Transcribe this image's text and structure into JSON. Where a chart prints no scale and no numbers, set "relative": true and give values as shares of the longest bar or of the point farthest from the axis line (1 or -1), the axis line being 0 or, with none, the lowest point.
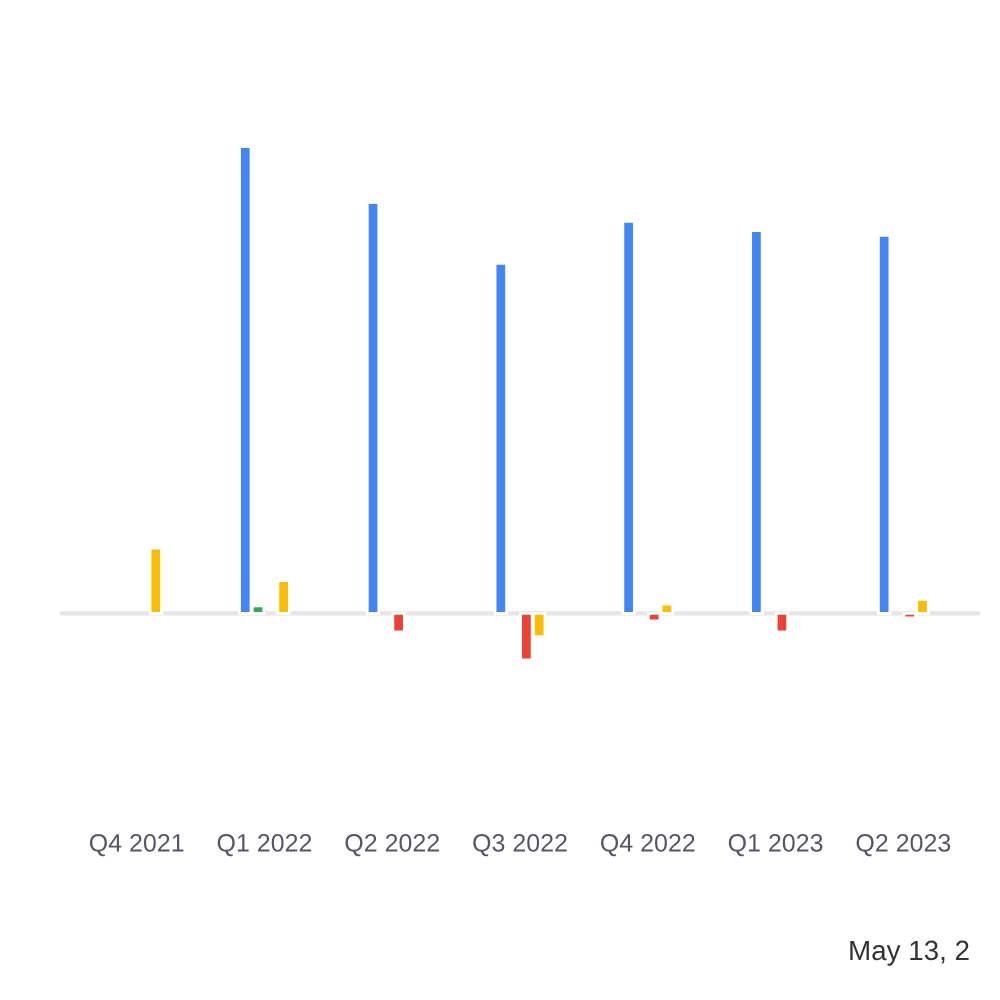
{
  "chart_data": {
    "type": "bar",
    "relative": true,
    "categories": [
      "Q4 2021",
      "Q1 2022",
      "Q2 2022",
      "Q3 2022",
      "Q4 2022",
      "Q1 2023",
      "Q2 2023"
    ],
    "series": [
      {
        "color": "#4285f4",
        "values": [
          null,
          1.0,
          0.88,
          0.75,
          0.84,
          0.82,
          0.81
        ]
      },
      {
        "color": "#34a853",
        "values": [
          null,
          0.016,
          null,
          null,
          null,
          null,
          null
        ]
      },
      {
        "color": "#ea4335",
        "values": [
          null,
          null,
          -0.04,
          -0.1,
          -0.016,
          -0.04,
          -0.01
        ]
      },
      {
        "color": "#fbbc04",
        "values": [
          0.14,
          0.07,
          null,
          -0.05,
          0.02,
          null,
          0.03
        ]
      }
    ],
    "annotations": [
      "May 13, 2"
    ]
  }
}
